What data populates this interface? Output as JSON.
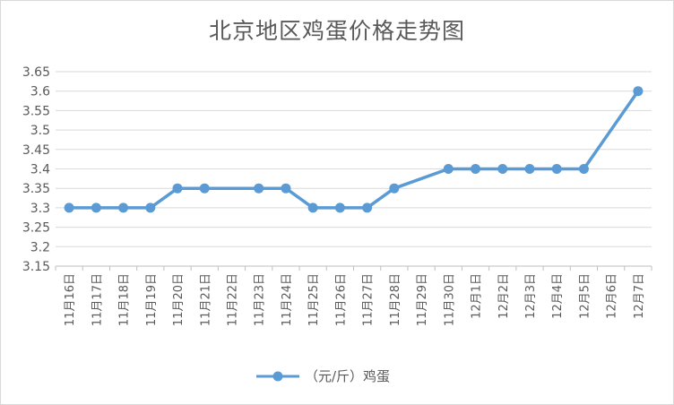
{
  "chart_data": {
    "type": "line",
    "title": "北京地区鸡蛋价格走势图",
    "xlabel": "",
    "ylabel": "",
    "categories": [
      "11月16日",
      "11月17日",
      "11月18日",
      "11月19日",
      "11月20日",
      "11月21日",
      "11月22日",
      "11月23日",
      "11月24日",
      "11月25日",
      "11月26日",
      "11月27日",
      "11月28日",
      "11月29日",
      "11月30日",
      "12月1日",
      "12月2日",
      "12月3日",
      "12月4日",
      "12月5日",
      "12月6日",
      "12月7日"
    ],
    "series": [
      {
        "name": "（元/斤）鸡蛋",
        "color": "#5b9bd5",
        "values": [
          3.3,
          3.3,
          3.3,
          3.3,
          3.35,
          3.35,
          null,
          3.35,
          3.35,
          3.3,
          3.3,
          3.3,
          3.35,
          null,
          3.4,
          3.4,
          3.4,
          3.4,
          3.4,
          3.4,
          null,
          3.6
        ]
      }
    ],
    "ylim": [
      3.15,
      3.65
    ],
    "yticks": [
      "3.15",
      "3.2",
      "3.25",
      "3.3",
      "3.35",
      "3.4",
      "3.45",
      "3.5",
      "3.55",
      "3.6",
      "3.65"
    ],
    "grid": true,
    "legend": "bottom"
  }
}
